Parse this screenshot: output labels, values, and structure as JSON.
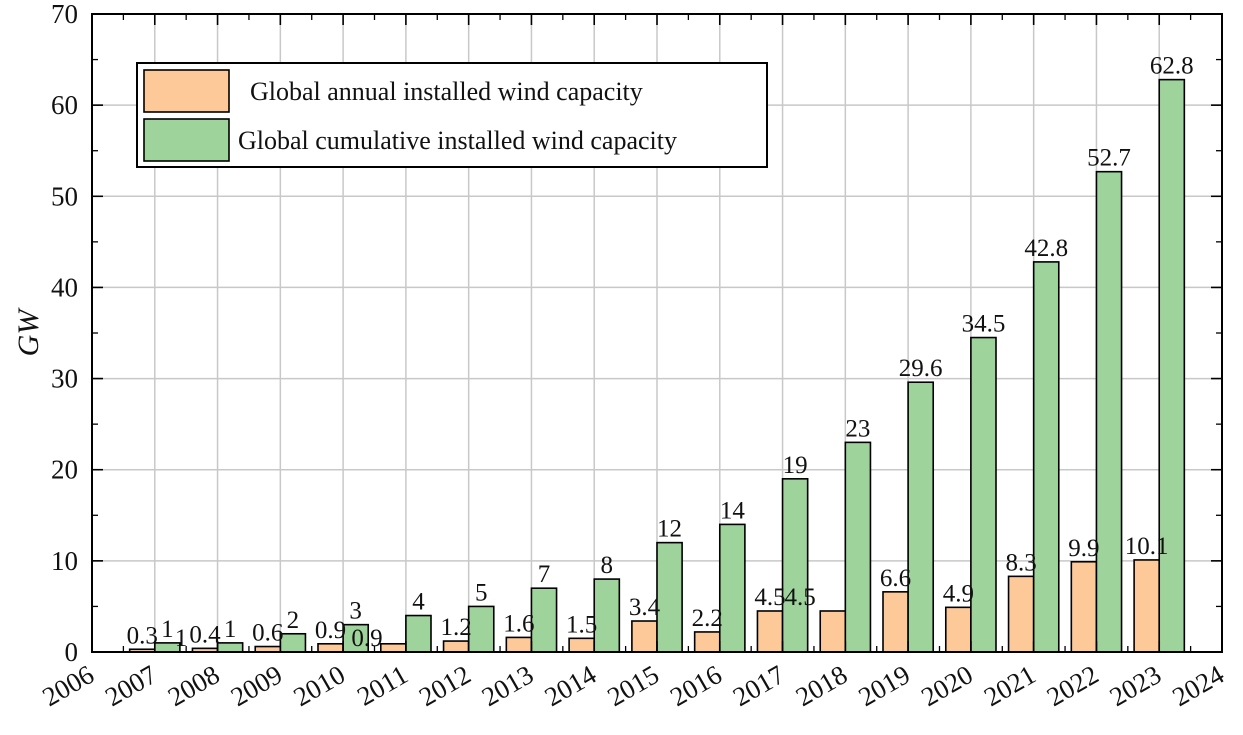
{
  "chart_data": {
    "type": "bar",
    "title": "",
    "xlabel": "",
    "ylabel": "GW",
    "ylim": [
      0,
      70
    ],
    "y_ticks": [
      0,
      10,
      20,
      30,
      40,
      50,
      60,
      70
    ],
    "xlim": [
      2006,
      2024
    ],
    "x_tick_labels": [
      "2006",
      "2007",
      "2008",
      "2009",
      "2010",
      "2011",
      "2012",
      "2013",
      "2014",
      "2015",
      "2016",
      "2017",
      "2018",
      "2019",
      "2020",
      "2021",
      "2022",
      "2023",
      "2024"
    ],
    "categories": [
      "2007",
      "2008",
      "2009",
      "2010",
      "2011",
      "2012",
      "2013",
      "2014",
      "2015",
      "2016",
      "2017",
      "2018",
      "2019",
      "2020",
      "2021",
      "2022",
      "2023"
    ],
    "grid": true,
    "legend_position": "top-left",
    "series": [
      {
        "name": "Global annual installed wind capacity",
        "color": "#FDC999",
        "values": [
          0.3,
          0.4,
          0.6,
          0.9,
          0.9,
          1.2,
          1.6,
          1.5,
          3.4,
          2.2,
          4.5,
          4.5,
          6.6,
          4.9,
          8.3,
          9.9,
          10.1
        ],
        "labels": [
          "0.3",
          "0.4",
          "0.6",
          "0.9",
          "",
          "1.2",
          "1.6",
          "1.5",
          "3.4",
          "2.2",
          "4.5",
          "",
          "6.6",
          "4.9",
          "8.3",
          "9.9",
          "10.1"
        ]
      },
      {
        "name": "Global cumulative installed wind capacity",
        "color": "#9ED39C",
        "values": [
          1,
          1,
          2,
          3,
          4,
          5,
          7,
          8,
          12,
          14,
          19,
          23,
          29.6,
          34.5,
          42.8,
          52.7,
          62.8
        ],
        "labels": [
          "1",
          "1",
          "2",
          "3",
          "4",
          "5",
          "7",
          "8",
          "12",
          "14",
          "19",
          "23",
          "29.6",
          "34.5",
          "42.8",
          "52.7",
          "62.8"
        ]
      }
    ],
    "extra_labels": [
      "1",
      "0.9",
      "4.5"
    ]
  }
}
